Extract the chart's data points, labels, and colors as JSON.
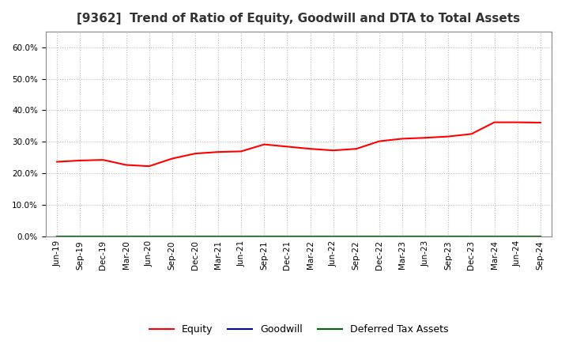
{
  "title": "[9362]  Trend of Ratio of Equity, Goodwill and DTA to Total Assets",
  "x_labels": [
    "Jun-19",
    "Sep-19",
    "Dec-19",
    "Mar-20",
    "Jun-20",
    "Sep-20",
    "Dec-20",
    "Mar-21",
    "Jun-21",
    "Sep-21",
    "Dec-21",
    "Mar-22",
    "Jun-22",
    "Sep-22",
    "Dec-22",
    "Mar-23",
    "Jun-23",
    "Sep-23",
    "Dec-23",
    "Mar-24",
    "Jun-24",
    "Sep-24"
  ],
  "equity": [
    0.237,
    0.241,
    0.243,
    0.227,
    0.223,
    0.247,
    0.263,
    0.268,
    0.27,
    0.292,
    0.285,
    0.278,
    0.273,
    0.278,
    0.302,
    0.31,
    0.313,
    0.317,
    0.325,
    0.362,
    0.362,
    0.361
  ],
  "goodwill": [
    0.0,
    0.0,
    0.0,
    0.0,
    0.0,
    0.0,
    0.0,
    0.0,
    0.0,
    0.0,
    0.0,
    0.0,
    0.0,
    0.0,
    0.0,
    0.0,
    0.0,
    0.0,
    0.0,
    0.0,
    0.0,
    0.0
  ],
  "dta": [
    0.0,
    0.0,
    0.0,
    0.0,
    0.0,
    0.0,
    0.0,
    0.0,
    0.0,
    0.0,
    0.0,
    0.0,
    0.0,
    0.0,
    0.0,
    0.0,
    0.0,
    0.0,
    0.0,
    0.0,
    0.0,
    0.0
  ],
  "equity_color": "#FF0000",
  "goodwill_color": "#0000CC",
  "dta_color": "#006600",
  "ylim": [
    0.0,
    0.65
  ],
  "yticks": [
    0.0,
    0.1,
    0.2,
    0.3,
    0.4,
    0.5,
    0.6
  ],
  "bg_color": "#FFFFFF",
  "plot_bg_color": "#FFFFFF",
  "grid_color": "#BBBBBB",
  "title_fontsize": 11,
  "tick_fontsize": 7.5,
  "legend_fontsize": 9,
  "title_color": "#333333"
}
